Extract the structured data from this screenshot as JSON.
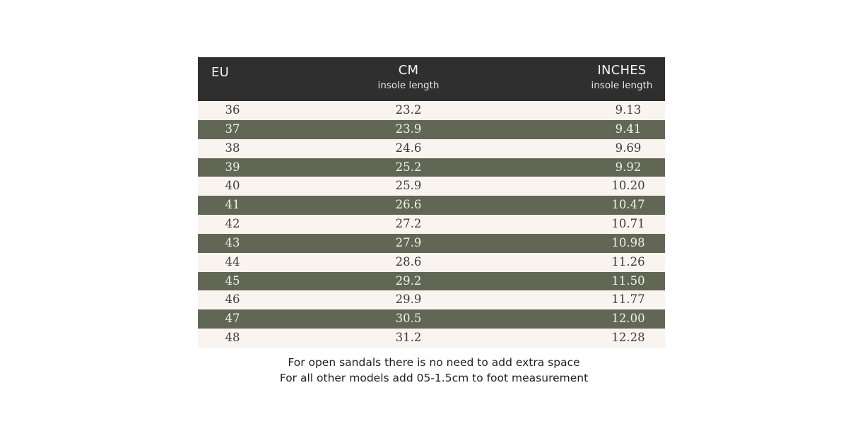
{
  "table": {
    "headers": {
      "eu": "EU",
      "cm": "CM",
      "cm_sub": "insole length",
      "inches": "INCHES",
      "inches_sub": "insole length"
    },
    "rows": [
      {
        "eu": "36",
        "cm": "23.2",
        "inches": "9.13"
      },
      {
        "eu": "37",
        "cm": "23.9",
        "inches": "9.41"
      },
      {
        "eu": "38",
        "cm": "24.6",
        "inches": "9.69"
      },
      {
        "eu": "39",
        "cm": "25.2",
        "inches": "9.92"
      },
      {
        "eu": "40",
        "cm": "25.9",
        "inches": "10.20"
      },
      {
        "eu": "41",
        "cm": "26.6",
        "inches": "10.47"
      },
      {
        "eu": "42",
        "cm": "27.2",
        "inches": "10.71"
      },
      {
        "eu": "43",
        "cm": "27.9",
        "inches": "10.98"
      },
      {
        "eu": "44",
        "cm": "28.6",
        "inches": "11.26"
      },
      {
        "eu": "45",
        "cm": "29.2",
        "inches": "11.50"
      },
      {
        "eu": "46",
        "cm": "29.9",
        "inches": "11.77"
      },
      {
        "eu": "47",
        "cm": "30.5",
        "inches": "12.00"
      },
      {
        "eu": "48",
        "cm": "31.2",
        "inches": "12.28"
      }
    ]
  },
  "notes": {
    "line1": "For open sandals there is no need to add extra space",
    "line2": "For all other models add 05-1.5cm to foot measurement"
  },
  "colors": {
    "header_bg": "#2f2f2f",
    "row_light": "#f9f4ef",
    "row_dark": "#616754"
  }
}
